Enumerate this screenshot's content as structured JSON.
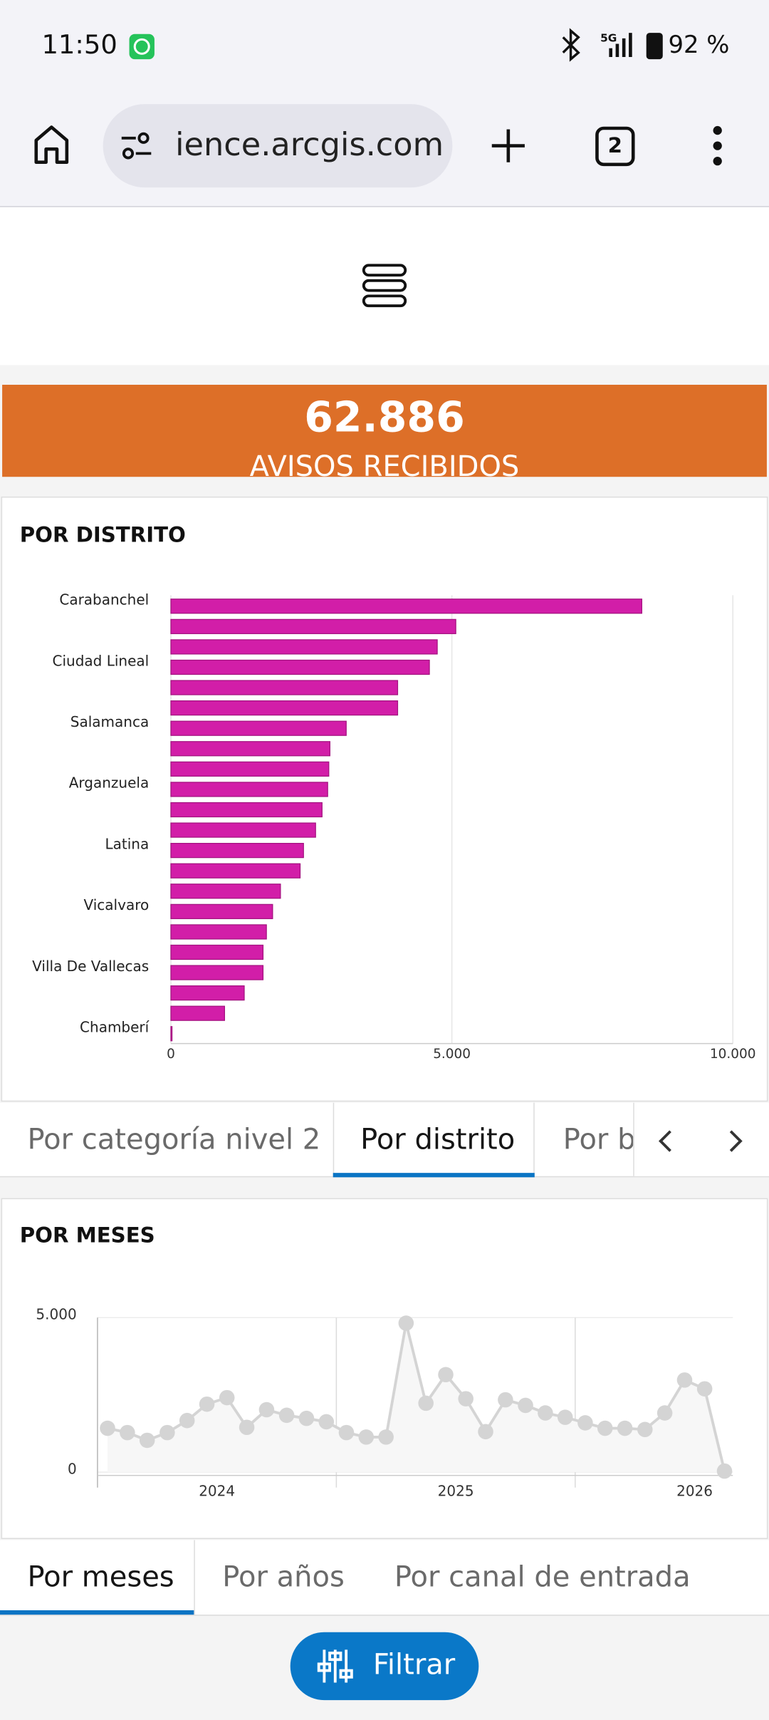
{
  "status_bar": {
    "time": "11:50",
    "network": "5G",
    "battery": "92 %"
  },
  "browser": {
    "url": "ience.arcgis.com",
    "tab_count": 2
  },
  "indicator": {
    "value": "62.886",
    "label": "AVISOS RECIBIDOS"
  },
  "chart_data": [
    {
      "type": "bar",
      "orientation": "horizontal",
      "title": "POR DISTRITO",
      "categories": [
        "Carabanchel",
        null,
        null,
        "Ciudad Lineal",
        null,
        null,
        "Salamanca",
        null,
        null,
        "Arganzuela",
        null,
        null,
        "Latina",
        null,
        null,
        "Vicalvaro",
        null,
        null,
        "Villa De Vallecas",
        null,
        null,
        "Chamberí"
      ],
      "values": [
        8380,
        5070,
        4740,
        4600,
        4035,
        4035,
        3120,
        2830,
        2810,
        2790,
        2690,
        2575,
        2360,
        2300,
        1950,
        1810,
        1700,
        1640,
        1640,
        1305,
        955,
        20
      ],
      "color": "#d21ea8",
      "xlim": [
        0,
        10000
      ],
      "xticks": [
        0,
        {
          "value": 5000,
          "label": "5.000"
        },
        {
          "value": 10000,
          "label": "10.000"
        }
      ],
      "grid": true
    },
    {
      "type": "line",
      "title": "POR MESES",
      "x": [
        2024.042,
        2024.125,
        2024.208,
        2024.292,
        2024.375,
        2024.458,
        2024.542,
        2024.625,
        2024.708,
        2024.792,
        2024.875,
        2024.958,
        2025.042,
        2025.125,
        2025.208,
        2025.292,
        2025.375,
        2025.458,
        2025.542,
        2025.625,
        2025.708,
        2025.792,
        2025.875,
        2025.958,
        2026.042,
        2026.125,
        2026.208,
        2026.292,
        2026.375,
        2026.458,
        2026.542,
        2026.625
      ],
      "values": [
        1420,
        1280,
        1030,
        1280,
        1670,
        2200,
        2410,
        1450,
        2020,
        1840,
        1740,
        1630,
        1280,
        1135,
        1135,
        4820,
        2230,
        3155,
        2375,
        1310,
        2340,
        2160,
        1915,
        1775,
        1595,
        1420,
        1420,
        1380,
        1915,
        2980,
        2695,
        35
      ],
      "color": "#d4d4d4",
      "xlim": [
        2024,
        2026.66
      ],
      "xticks": [
        {
          "value": 2024.5,
          "label": "2024"
        },
        {
          "value": 2025.5,
          "label": "2025"
        },
        {
          "value": 2026.5,
          "label": "2026"
        }
      ],
      "xgrid": [
        2024,
        2025,
        2026
      ],
      "ylim": [
        0,
        5000
      ],
      "yticks": [
        0,
        {
          "value": 5000,
          "label": "5.000"
        }
      ],
      "grid": true
    }
  ],
  "tabs_1": {
    "items": [
      "Por categoría nivel 2",
      "Por distrito",
      "Por b"
    ],
    "selected": 1
  },
  "tabs_2": {
    "items": [
      "Por meses",
      "Por años",
      "Por canal de entrada"
    ],
    "selected": 0
  },
  "filter_button": "Filtrar"
}
